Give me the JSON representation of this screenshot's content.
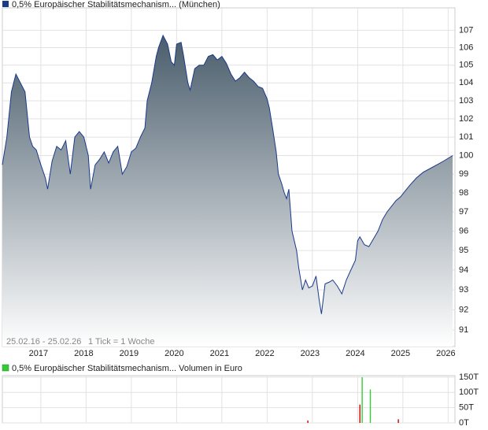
{
  "chart_data": [
    {
      "type": "area",
      "title": "0,5% Europäischer Stabilitätsmechanism... (München)",
      "date_range": "25.02.16 - 25.02.26",
      "tick_note": "1 Tick = 1 Woche",
      "color": "#1a3a8a",
      "log": true,
      "grid": true,
      "xlim": [
        2016.15,
        2026.15
      ],
      "xticks": [
        2017,
        2018,
        2019,
        2020,
        2021,
        2022,
        2023,
        2024,
        2025,
        2026
      ],
      "ylim": [
        90.2,
        108.3
      ],
      "yticks": [
        91,
        92,
        93,
        94,
        95,
        96,
        97,
        98,
        99,
        100,
        101,
        102,
        103,
        104,
        105,
        106,
        107
      ],
      "x": [
        2016.15,
        2016.25,
        2016.35,
        2016.45,
        2016.55,
        2016.65,
        2016.75,
        2016.82,
        2016.9,
        2017.0,
        2017.1,
        2017.15,
        2017.25,
        2017.35,
        2017.45,
        2017.55,
        2017.65,
        2017.75,
        2017.85,
        2017.95,
        2018.05,
        2018.1,
        2018.2,
        2018.3,
        2018.4,
        2018.5,
        2018.6,
        2018.7,
        2018.8,
        2018.9,
        2019.0,
        2019.1,
        2019.2,
        2019.3,
        2019.35,
        2019.45,
        2019.55,
        2019.6,
        2019.7,
        2019.8,
        2019.88,
        2019.95,
        2020.0,
        2020.1,
        2020.15,
        2020.25,
        2020.3,
        2020.4,
        2020.5,
        2020.6,
        2020.7,
        2020.8,
        2020.9,
        2021.0,
        2021.1,
        2021.2,
        2021.3,
        2021.4,
        2021.5,
        2021.6,
        2021.7,
        2021.8,
        2021.9,
        2022.0,
        2022.05,
        2022.12,
        2022.2,
        2022.25,
        2022.32,
        2022.38,
        2022.43,
        2022.48,
        2022.55,
        2022.65,
        2022.7,
        2022.78,
        2022.85,
        2022.92,
        2023.0,
        2023.08,
        2023.15,
        2023.2,
        2023.28,
        2023.38,
        2023.45,
        2023.55,
        2023.65,
        2023.75,
        2023.85,
        2023.95,
        2024.0,
        2024.05,
        2024.15,
        2024.25,
        2024.35,
        2024.45,
        2024.55,
        2024.65,
        2024.75,
        2024.85,
        2024.95,
        2025.05,
        2025.15,
        2025.3,
        2025.45,
        2025.6,
        2025.75,
        2025.9,
        2026.1
      ],
      "values": [
        99.5,
        101,
        103.5,
        104.5,
        104,
        103.5,
        101,
        100.5,
        100.3,
        99.5,
        98.8,
        98.2,
        99.7,
        100.5,
        100.3,
        100.8,
        99,
        101,
        101.3,
        101,
        100,
        98.2,
        99.5,
        99.8,
        100.2,
        99.6,
        100.2,
        100.5,
        99,
        99.4,
        100.2,
        100.4,
        101,
        101.5,
        103,
        104,
        105.5,
        106,
        106.7,
        106.2,
        105.2,
        105,
        106.2,
        106.3,
        105.6,
        104,
        103.6,
        104.8,
        105,
        105,
        105.5,
        105.6,
        105.3,
        105.5,
        105.1,
        104.5,
        104.1,
        104.3,
        104.6,
        104.3,
        104.1,
        103.8,
        103.7,
        103.1,
        102.6,
        101.5,
        100.2,
        99,
        98.5,
        98,
        97.7,
        98.2,
        96,
        95,
        94.1,
        93,
        93.5,
        93.1,
        93.2,
        93.7,
        92.5,
        91.8,
        93.3,
        93.4,
        93.5,
        93.2,
        92.8,
        93.5,
        94,
        94.5,
        95.5,
        95.7,
        95.3,
        95.2,
        95.6,
        96,
        96.6,
        97,
        97.3,
        97.6,
        97.8,
        98.1,
        98.4,
        98.8,
        99.1,
        99.3,
        99.5,
        99.7,
        100
      ]
    },
    {
      "type": "bar",
      "title": "0,5% Europäischer Stabilitätsmechanism... Volumen in Euro",
      "color": "#33cc33",
      "grid": true,
      "xlim": [
        2016.15,
        2026.15
      ],
      "xticks": [
        2017,
        2018,
        2019,
        2020,
        2021,
        2022,
        2023,
        2024,
        2025,
        2026
      ],
      "ylim": [
        0,
        155
      ],
      "yticks": [
        {
          "value": 0,
          "label": "0T"
        },
        {
          "value": 50,
          "label": "50T"
        },
        {
          "value": 100,
          "label": "100T"
        },
        {
          "value": 150,
          "label": "150T"
        }
      ],
      "x": [
        2022.9,
        2024.05,
        2024.1,
        2024.28,
        2024.9
      ],
      "values": [
        8,
        60,
        150,
        110,
        12
      ],
      "colors": [
        "#cc0000",
        "#cc0000",
        "#33cc33",
        "#33cc33",
        "#cc0000"
      ]
    }
  ]
}
